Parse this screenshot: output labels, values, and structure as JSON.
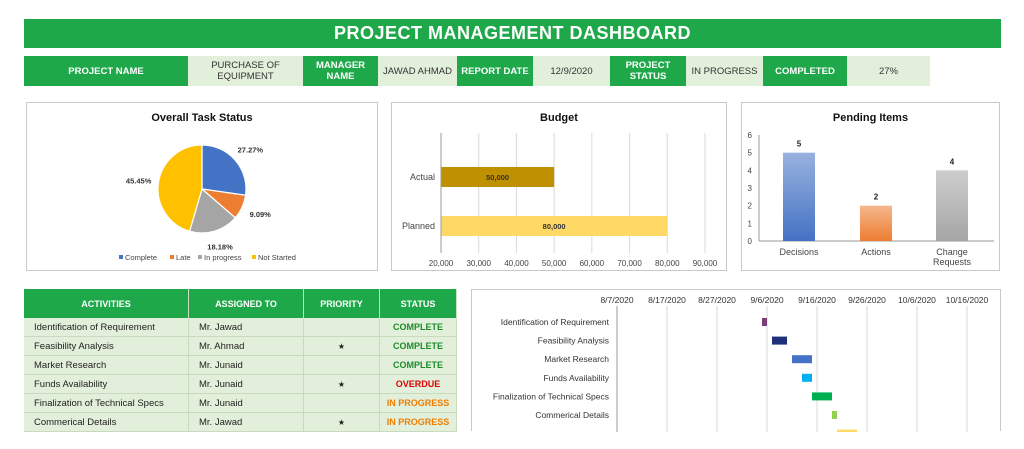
{
  "title": "PROJECT MANAGEMENT DASHBOARD",
  "info": {
    "project_name_label": "PROJECT NAME",
    "project_name_value": "PURCHASE OF EQUIPMENT",
    "manager_label": "MANAGER NAME",
    "manager_value": "JAWAD AHMAD",
    "report_date_label": "REPORT DATE",
    "report_date_value": "12/9/2020",
    "status_label": "PROJECT STATUS",
    "status_value": "IN PROGRESS",
    "completed_label": "COMPLETED",
    "completed_value": "27%"
  },
  "colors": {
    "accent": "#1fa84a",
    "light": "#e2efda",
    "complete": "#1e8b2a",
    "overdue": "#e00000",
    "in_progress": "#f07d00"
  },
  "table": {
    "headers": [
      "ACTIVITIES",
      "ASSIGNED TO",
      "PRIORITY",
      "STATUS"
    ],
    "rows": [
      {
        "activity": "Identification of Requirement",
        "assigned": "Mr. Jawad",
        "priority": "",
        "status": "COMPLETE",
        "status_color": "#1e8b2a"
      },
      {
        "activity": "Feasibility Analysis",
        "assigned": "Mr. Ahmad",
        "priority": "★",
        "status": "COMPLETE",
        "status_color": "#1e8b2a"
      },
      {
        "activity": "Market Research",
        "assigned": "Mr. Junaid",
        "priority": "",
        "status": "COMPLETE",
        "status_color": "#1e8b2a"
      },
      {
        "activity": "Funds Availability",
        "assigned": "Mr. Junaid",
        "priority": "★",
        "status": "OVERDUE",
        "status_color": "#e00000"
      },
      {
        "activity": "Finalization of Technical Specs",
        "assigned": "Mr. Junaid",
        "priority": "",
        "status": "IN PROGRESS",
        "status_color": "#f07d00"
      },
      {
        "activity": "Commerical Details",
        "assigned": "Mr. Jawad",
        "priority": "★",
        "status": "IN PROGRESS",
        "status_color": "#f07d00"
      }
    ]
  },
  "chart_data": [
    {
      "type": "pie",
      "title": "Overall Task Status",
      "categories": [
        "Complete",
        "Late",
        "In progress",
        "Not Started"
      ],
      "values": [
        27.27,
        9.09,
        18.18,
        45.45
      ],
      "labels": [
        "27.27%",
        "9.09%",
        "18.18%",
        "45.45%"
      ],
      "colors": [
        "#4472c4",
        "#ed7d31",
        "#a5a5a5",
        "#ffc000"
      ],
      "legend": "bottom"
    },
    {
      "type": "bar",
      "orientation": "horizontal",
      "title": "Budget",
      "categories": [
        "Actual",
        "Planned"
      ],
      "values": [
        50000,
        80000
      ],
      "labels": [
        "50,000",
        "80,000"
      ],
      "colors": [
        "#bf9000",
        "#ffd966"
      ],
      "xlim": [
        20000,
        90000
      ],
      "xticks": [
        "20,000",
        "30,000",
        "40,000",
        "50,000",
        "60,000",
        "70,000",
        "80,000",
        "90,000"
      ]
    },
    {
      "type": "bar",
      "title": "Pending Items",
      "categories": [
        "Decisions",
        "Actions",
        "Change Requests"
      ],
      "values": [
        5,
        2,
        4
      ],
      "colors": [
        "#4472c4",
        "#ed7d31",
        "#a5a5a5"
      ],
      "ylim": [
        0,
        6
      ],
      "yticks": [
        "0",
        "1",
        "2",
        "3",
        "4",
        "5",
        "6"
      ]
    },
    {
      "type": "gantt",
      "xticks": [
        "8/7/2020",
        "8/17/2020",
        "8/27/2020",
        "9/6/2020",
        "9/16/2020",
        "9/26/2020",
        "10/6/2020",
        "10/16/2020"
      ],
      "tasks": [
        {
          "name": "Identification of Requirement",
          "start": "2020-09-05",
          "end": "2020-09-06",
          "color": "#7b3f7b"
        },
        {
          "name": "Feasibility Analysis",
          "start": "2020-09-07",
          "end": "2020-09-10",
          "color": "#1f2f7a"
        },
        {
          "name": "Market Research",
          "start": "2020-09-11",
          "end": "2020-09-15",
          "color": "#4472c4"
        },
        {
          "name": "Funds Availability",
          "start": "2020-09-13",
          "end": "2020-09-15",
          "color": "#00b0f0"
        },
        {
          "name": "Finalization of Technical Specs",
          "start": "2020-09-15",
          "end": "2020-09-19",
          "color": "#00b050"
        },
        {
          "name": "Commerical Details",
          "start": "2020-09-19",
          "end": "2020-09-20",
          "color": "#92d050"
        },
        {
          "name": "",
          "start": "2020-09-20",
          "end": "2020-09-24",
          "color": "#ffd966"
        }
      ]
    }
  ]
}
